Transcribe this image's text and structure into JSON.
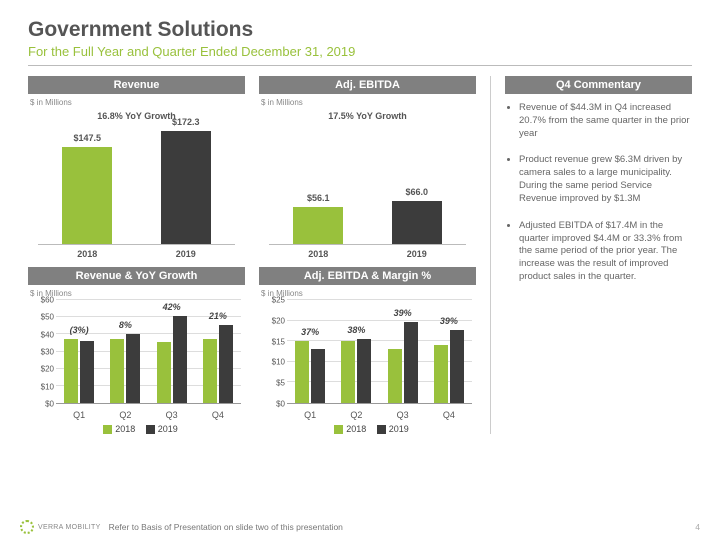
{
  "title": "Government Solutions",
  "subtitle": "For the Full Year and Quarter Ended December 31, 2019",
  "units": "$ in Millions",
  "colors": {
    "c2018": "#99c13c",
    "c2019": "#3c3c3c",
    "head": "#808080"
  },
  "legend": {
    "a": "2018",
    "b": "2019"
  },
  "revenue": {
    "title": "Revenue",
    "growth": "16.8% YoY Growth",
    "bars": [
      {
        "label": "2018",
        "value": 147.5,
        "disp": "$147.5",
        "color": "#99c13c"
      },
      {
        "label": "2019",
        "value": 172.3,
        "disp": "$172.3",
        "color": "#3c3c3c"
      }
    ],
    "ymax": 175
  },
  "ebitda": {
    "title": "Adj. EBITDA",
    "growth": "17.5% YoY Growth",
    "bars": [
      {
        "label": "2018",
        "value": 56.1,
        "disp": "$56.1",
        "color": "#99c13c"
      },
      {
        "label": "2019",
        "value": 66.0,
        "disp": "$66.0",
        "color": "#3c3c3c"
      }
    ],
    "ymax": 175
  },
  "rev_q": {
    "title": "Revenue & YoY Growth",
    "ticks": [
      "$0",
      "$10",
      "$20",
      "$30",
      "$40",
      "$50",
      "$60"
    ],
    "ymax": 60,
    "quarters": [
      "Q1",
      "Q2",
      "Q3",
      "Q4"
    ],
    "v2018": [
      37,
      37,
      35,
      37
    ],
    "v2019": [
      36,
      40,
      50,
      45
    ],
    "pct": [
      "(3%)",
      "8%",
      "42%",
      "21%"
    ]
  },
  "ebitda_q": {
    "title": "Adj. EBITDA & Margin %",
    "ticks": [
      "$0",
      "$5",
      "$10",
      "$15",
      "$20",
      "$25"
    ],
    "ymax": 25,
    "quarters": [
      "Q1",
      "Q2",
      "Q3",
      "Q4"
    ],
    "v2018": [
      15,
      15,
      13,
      14
    ],
    "v2019": [
      13,
      15.5,
      19.5,
      17.5
    ],
    "pct": [
      "37%",
      "38%",
      "39%",
      "39%"
    ]
  },
  "commentary": {
    "title": "Q4 Commentary",
    "items": [
      "Revenue of $44.3M in Q4 increased 20.7% from the same quarter in the prior year",
      "Product revenue grew $6.3M driven by camera sales to a large municipality. During the same period Service Revenue improved by $1.3M",
      "Adjusted EBITDA of $17.4M in the quarter improved $4.4M or 33.3% from the same period of the prior year.  The increase was the result of improved product sales in the quarter."
    ]
  },
  "footer": {
    "brand": "VERRA MOBILITY",
    "note": "Refer to Basis of Presentation on slide two of this presentation",
    "page": "4"
  }
}
